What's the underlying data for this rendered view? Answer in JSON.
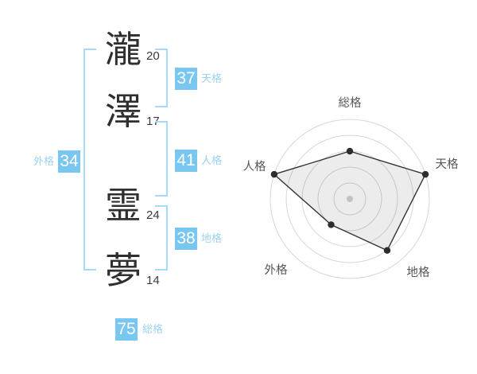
{
  "name_analysis": {
    "characters": [
      {
        "char": "瀧",
        "strokes": "20"
      },
      {
        "char": "澤",
        "strokes": "17"
      },
      {
        "char": "霊",
        "strokes": "24"
      },
      {
        "char": "夢",
        "strokes": "14"
      }
    ],
    "results": {
      "tenkaku": {
        "label": "天格",
        "value": "37"
      },
      "jinkaku": {
        "label": "人格",
        "value": "41"
      },
      "chikaku": {
        "label": "地格",
        "value": "38"
      },
      "gaikaku": {
        "label": "外格",
        "value": "34"
      },
      "soukaku": {
        "label": "総格",
        "value": "75"
      }
    }
  },
  "chart_data": {
    "type": "radar",
    "axes": [
      "総格",
      "天格",
      "地格",
      "外格",
      "人格"
    ],
    "series": [
      {
        "name": "name-fortune-score",
        "values_pct": [
          60,
          100,
          80,
          40,
          100
        ]
      }
    ],
    "max": 100,
    "rings": 5,
    "grid": "concentric-circles",
    "legend": "none"
  },
  "colors": {
    "accent_blue": "#79c7f1",
    "label_blue": "#9cd2f2",
    "bracket_blue": "#a7daf8",
    "ring_gray": "#d7d7d7",
    "polygon_stroke": "#333333",
    "polygon_fill": "rgba(0,0,0,0.075)",
    "marker": "#2d2d2d",
    "center_dot": "#c3c3c3",
    "axis_label": "#555555"
  }
}
